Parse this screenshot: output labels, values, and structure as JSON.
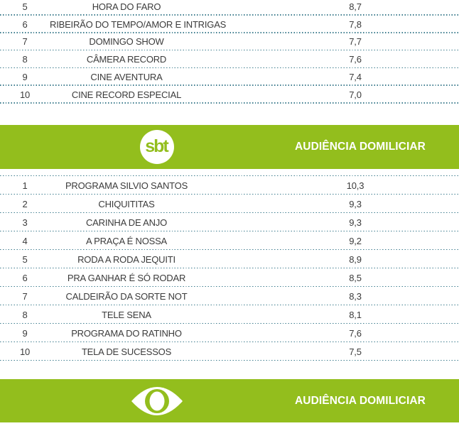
{
  "colors": {
    "banner_green": "#93be1d",
    "divider_teal": "#3e7c8e",
    "row_text": "#3b3b3b",
    "banner_text": "#ffffff"
  },
  "logos": {
    "sbt_text": "sbt"
  },
  "banners": {
    "sbt_label": "AUDIÊNCIA DOMILICIAR",
    "band_label": "AUDIÊNCIA DOMILICIAR"
  },
  "tables": {
    "record_partial": {
      "rows": [
        {
          "rank": "5",
          "name": "HORA DO FARO",
          "rating": "8,7"
        },
        {
          "rank": "6",
          "name": "RIBEIRÃO DO TEMPO/AMOR E INTRIGAS",
          "rating": "7,8"
        },
        {
          "rank": "7",
          "name": "DOMINGO SHOW",
          "rating": "7,7"
        },
        {
          "rank": "8",
          "name": "CÂMERA RECORD",
          "rating": "7,6"
        },
        {
          "rank": "9",
          "name": "CINE AVENTURA",
          "rating": "7,4"
        },
        {
          "rank": "10",
          "name": "CINE RECORD ESPECIAL",
          "rating": "7,0"
        }
      ]
    },
    "sbt": {
      "rows": [
        {
          "rank": "1",
          "name": "PROGRAMA SILVIO SANTOS",
          "rating": "10,3"
        },
        {
          "rank": "2",
          "name": "CHIQUITITAS",
          "rating": "9,3"
        },
        {
          "rank": "3",
          "name": "CARINHA DE ANJO",
          "rating": "9,3"
        },
        {
          "rank": "4",
          "name": "A PRAÇA É NOSSA",
          "rating": "9,2"
        },
        {
          "rank": "5",
          "name": "RODA A RODA JEQUITI",
          "rating": "8,9"
        },
        {
          "rank": "6",
          "name": "PRA GANHAR É SÓ RODAR",
          "rating": "8,5"
        },
        {
          "rank": "7",
          "name": "CALDEIRÃO DA SORTE NOT",
          "rating": "8,3"
        },
        {
          "rank": "8",
          "name": "TELE SENA",
          "rating": "8,1"
        },
        {
          "rank": "9",
          "name": "PROGRAMA DO RATINHO",
          "rating": "7,6"
        },
        {
          "rank": "10",
          "name": "TELA DE SUCESSOS",
          "rating": "7,5"
        }
      ]
    }
  }
}
